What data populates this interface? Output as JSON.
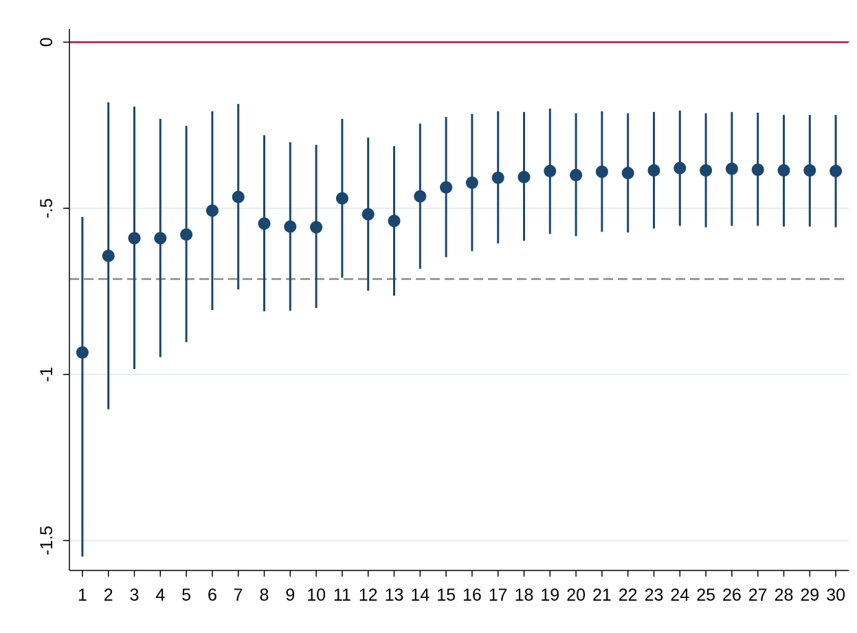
{
  "chart_data": {
    "type": "errorbar",
    "x": [
      1,
      2,
      3,
      4,
      5,
      6,
      7,
      8,
      9,
      10,
      11,
      12,
      13,
      14,
      15,
      16,
      17,
      18,
      19,
      20,
      21,
      22,
      23,
      24,
      25,
      26,
      27,
      28,
      29,
      30
    ],
    "series": [
      {
        "color": "#1a476f",
        "values": [
          -0.934,
          -0.643,
          -0.59,
          -0.59,
          -0.579,
          -0.507,
          -0.466,
          -0.546,
          -0.555,
          -0.557,
          -0.47,
          -0.518,
          -0.538,
          -0.464,
          -0.437,
          -0.423,
          -0.408,
          -0.406,
          -0.388,
          -0.4,
          -0.39,
          -0.394,
          -0.386,
          -0.379,
          -0.386,
          -0.381,
          -0.384,
          -0.386,
          -0.386,
          -0.388
        ],
        "lower": [
          -1.548,
          -1.105,
          -0.984,
          -0.948,
          -0.903,
          -0.806,
          -0.744,
          -0.81,
          -0.808,
          -0.8,
          -0.709,
          -0.748,
          -0.763,
          -0.682,
          -0.647,
          -0.629,
          -0.606,
          -0.598,
          -0.577,
          -0.584,
          -0.571,
          -0.573,
          -0.561,
          -0.553,
          -0.557,
          -0.553,
          -0.553,
          -0.555,
          -0.555,
          -0.557
        ],
        "upper": [
          -0.526,
          -0.181,
          -0.194,
          -0.231,
          -0.252,
          -0.208,
          -0.186,
          -0.28,
          -0.301,
          -0.309,
          -0.231,
          -0.287,
          -0.313,
          -0.245,
          -0.225,
          -0.216,
          -0.208,
          -0.21,
          -0.2,
          -0.214,
          -0.208,
          -0.214,
          -0.21,
          -0.206,
          -0.214,
          -0.21,
          -0.212,
          -0.219,
          -0.219,
          -0.219
        ]
      }
    ],
    "xlim": [
      0.5,
      30.5
    ],
    "xticks": [
      1,
      2,
      3,
      4,
      5,
      6,
      7,
      8,
      9,
      10,
      11,
      12,
      13,
      14,
      15,
      16,
      17,
      18,
      19,
      20,
      21,
      22,
      23,
      24,
      25,
      26,
      27,
      28,
      29,
      30
    ],
    "ylim": [
      -1.59,
      0.04
    ],
    "yticks": [
      0,
      {
        "value": -0.5,
        "label": "-.5"
      },
      -1,
      -1.5
    ],
    "grid": true,
    "grid_color": "#e4eeee",
    "hlines": [
      {
        "value": 0,
        "color": "#b5123e",
        "style": "solid"
      },
      {
        "value": -0.713,
        "color": "#888888",
        "style": "dashed"
      }
    ]
  }
}
